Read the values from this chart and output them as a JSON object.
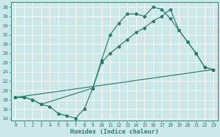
{
  "xlabel": "Humidex (Indice chaleur)",
  "bg_color": "#cce8e8",
  "grid_color": "#ffffff",
  "line_color": "#2d7a6e",
  "xlim": [
    -0.5,
    23.5
  ],
  "ylim": [
    13.5,
    39
  ],
  "yticks": [
    14,
    16,
    18,
    20,
    22,
    24,
    26,
    28,
    30,
    32,
    34,
    36,
    38
  ],
  "xticks": [
    0,
    1,
    2,
    3,
    4,
    5,
    6,
    7,
    8,
    9,
    10,
    11,
    12,
    13,
    14,
    15,
    16,
    17,
    18,
    19,
    20,
    21,
    22,
    23
  ],
  "line1_x": [
    0,
    1,
    2,
    3,
    4,
    5,
    6,
    7,
    8,
    9,
    10,
    11,
    12,
    13,
    14,
    15,
    16,
    17,
    18,
    19,
    20,
    21,
    22,
    23
  ],
  "line1_y": [
    18.5,
    18.5,
    18.0,
    17.0,
    16.5,
    15.0,
    14.5,
    14.0,
    16.0,
    20.5,
    26.5,
    32.0,
    34.5,
    36.5,
    36.5,
    36.0,
    38.0,
    37.5,
    35.5,
    33.0,
    30.5,
    28.0,
    25.0,
    24.5
  ],
  "line2_x": [
    0,
    1,
    2,
    3,
    9,
    10,
    11,
    12,
    13,
    14,
    15,
    16,
    17,
    18,
    19,
    20,
    21,
    22,
    23
  ],
  "line2_y": [
    18.5,
    18.5,
    18.0,
    17.0,
    20.5,
    26.0,
    28.0,
    29.5,
    31.0,
    32.5,
    33.5,
    35.0,
    36.0,
    37.5,
    33.0,
    30.5,
    28.0,
    25.0,
    24.5
  ],
  "line3_x": [
    0,
    23
  ],
  "line3_y": [
    18.5,
    24.5
  ],
  "marker_size": 2.5,
  "linewidth": 0.9,
  "tick_fontsize": 5.0,
  "xlabel_fontsize": 6.5
}
